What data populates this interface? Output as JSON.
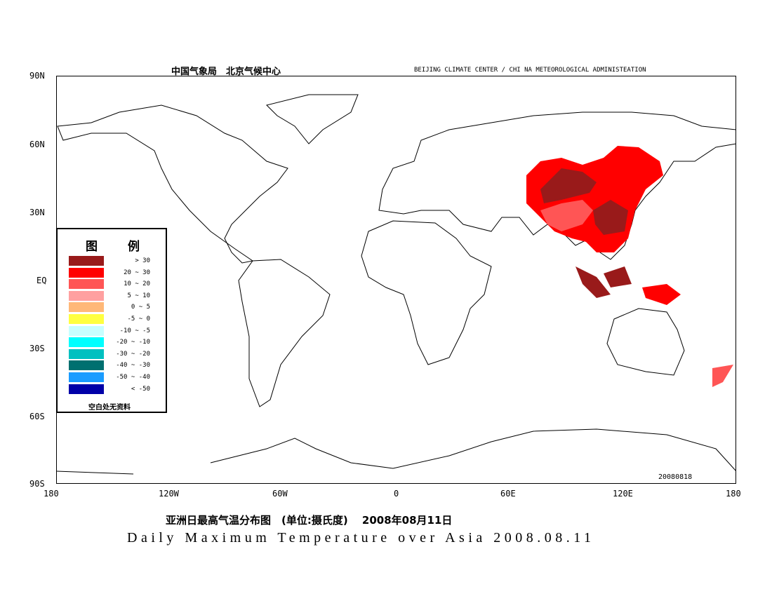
{
  "header": {
    "left": "中国气象局　北京气候中心",
    "right": "BEIJING CLIMATE CENTER / CHI NA METEOROLOGICAL ADMINISTEATION"
  },
  "lat_ticks": [
    "90N",
    "60N",
    "30N",
    "EQ",
    "30S",
    "60S",
    "90S"
  ],
  "lon_ticks": [
    "180",
    "120W",
    "60W",
    "0",
    "60E",
    "120E",
    "180"
  ],
  "stamp": "20080818",
  "legend": {
    "title_a": "图",
    "title_b": "例",
    "note": "空白处无资料",
    "items": [
      {
        "label": "> 30",
        "color": "#991a1a"
      },
      {
        "label": "20 ~ 30",
        "color": "#ff0000"
      },
      {
        "label": "10 ~ 20",
        "color": "#ff5555"
      },
      {
        "label": "5 ~ 10",
        "color": "#ffa0a0"
      },
      {
        "label": "0 ~ 5",
        "color": "#ffb878"
      },
      {
        "label": "-5 ~ 0",
        "color": "#ffff40"
      },
      {
        "label": "-10 ~ -5",
        "color": "#c8ffff"
      },
      {
        "label": "-20 ~ -10",
        "color": "#00ffff"
      },
      {
        "label": "-30 ~ -20",
        "color": "#00c0c0"
      },
      {
        "label": "-40 ~ -30",
        "color": "#007070"
      },
      {
        "label": "-50 ~ -40",
        "color": "#1a9cff"
      },
      {
        "label": "< -50",
        "color": "#0000a8"
      }
    ]
  },
  "title_cn": "亚洲日最高气温分布图　(单位:摄氏度)　 2008年08月11日",
  "title_en": "Daily Maximum Temperature over Asia  2008.08.11"
}
